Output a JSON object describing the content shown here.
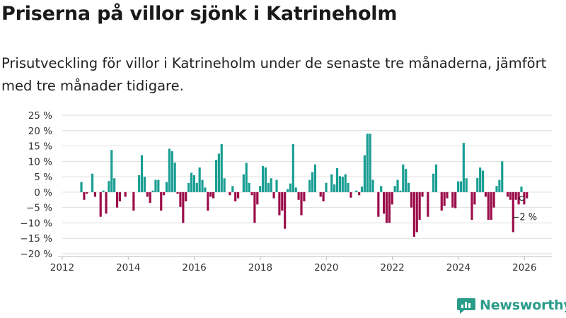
{
  "title": "Priserna på villor sjönk i Katrineholm",
  "subtitle": "Prisutveckling för villor i Katrineholm under de senaste tre månaderna, jämfört med tre månader tidigare.",
  "brand": {
    "name": "Newsworthy",
    "icon": "newsworthy-logo-icon"
  },
  "colors": {
    "positive": "#1a9e93",
    "negative": "#9b0d4a",
    "grid": "#dddddd",
    "brand": "#2b9c8a"
  },
  "chart_data": {
    "type": "bar",
    "title": "Prisutveckling för villor i Katrineholm",
    "xlabel": "",
    "ylabel": "",
    "x_start": 2012.58,
    "x_step": 0.0833,
    "xlim": [
      2011.83,
      2026.83
    ],
    "ylim": [
      -20,
      25
    ],
    "yticks": [
      25,
      20,
      15,
      10,
      5,
      0,
      -5,
      -10,
      -15,
      -20
    ],
    "ytick_labels": [
      "25 %",
      "20 %",
      "15 %",
      "10 %",
      "5 %",
      "0 %",
      "−5 %",
      "−10 %",
      "−15 %",
      "−20 %"
    ],
    "xticks": [
      2012,
      2014,
      2016,
      2018,
      2020,
      2022,
      2024,
      2026
    ],
    "xtick_labels": [
      "2012",
      "2014",
      "2016",
      "2018",
      "2020",
      "2022",
      "2024",
      "2026"
    ],
    "values": [
      3.3,
      -2.5,
      -0.5,
      0,
      6,
      -1.5,
      0,
      -8,
      0.5,
      -7,
      3.6,
      13.7,
      4.5,
      -5,
      -3,
      0,
      -1.5,
      0,
      0,
      -6,
      0,
      5.5,
      12,
      5,
      -1.5,
      -3.5,
      0.5,
      4,
      4,
      -6,
      -1,
      3.3,
      14.1,
      13.3,
      9.6,
      -0.5,
      -4.8,
      -10,
      -3,
      3,
      6.3,
      5.5,
      3,
      8,
      4,
      1.5,
      -6,
      -1.5,
      -2,
      10.5,
      12.5,
      15.6,
      4.5,
      0,
      -1,
      2,
      -3,
      -2,
      0,
      5.8,
      9.5,
      3,
      -1,
      -10,
      -4,
      2,
      8.5,
      8,
      3,
      4.5,
      -2,
      4,
      -7.5,
      -6,
      -11.9,
      1,
      2.8,
      15.6,
      1.5,
      -2.5,
      -7.5,
      -3,
      0,
      4,
      6.5,
      9,
      0,
      -1.5,
      -3,
      3,
      0,
      5.8,
      2.5,
      7.8,
      5.2,
      5,
      5.8,
      3,
      -1.8,
      0,
      0.5,
      -1,
      1.8,
      12,
      19,
      19,
      4,
      0,
      -8,
      2,
      -7,
      -10,
      -10,
      -4,
      2,
      4,
      0.5,
      9,
      7.5,
      3,
      -5,
      -14.5,
      -13,
      -9,
      -1.5,
      0,
      -8,
      0,
      6,
      9,
      0,
      -6,
      -4.5,
      -2,
      0,
      -5,
      -5.2,
      3.5,
      3.5,
      16,
      4.5,
      0,
      -9,
      -4,
      4.6,
      8,
      7,
      -1.5,
      -9,
      -9,
      -5,
      2,
      4,
      10,
      0,
      -1.5,
      -2.5,
      -13,
      -2.5,
      -4,
      1.8,
      -4,
      -2
    ],
    "annotation": {
      "label": "−2 %",
      "x": 2025.92,
      "y": -2
    }
  }
}
